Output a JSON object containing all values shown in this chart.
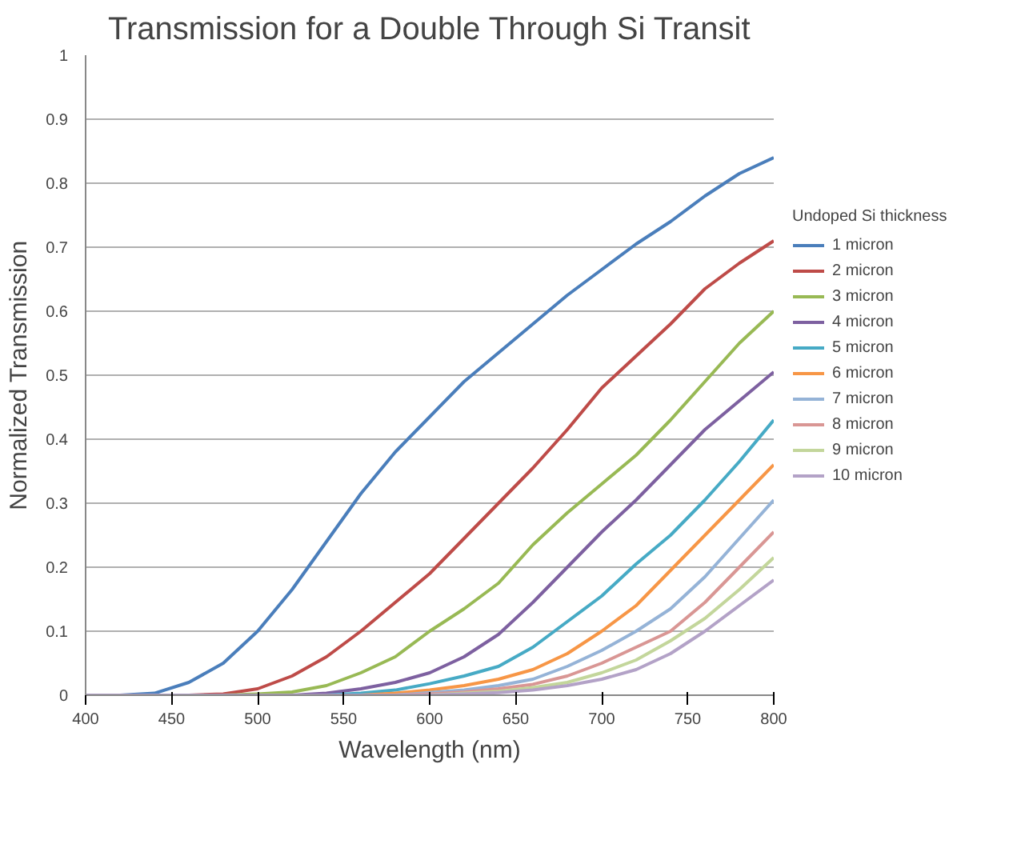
{
  "chart_data": {
    "type": "line",
    "title": "Transmission for a Double Through Si Transit",
    "xlabel": "Wavelength (nm)",
    "ylabel": "Normalized Transmission",
    "legend_title": "Undoped Si thickness",
    "x": [
      400,
      420,
      440,
      460,
      480,
      500,
      520,
      540,
      560,
      580,
      600,
      620,
      640,
      660,
      680,
      700,
      720,
      740,
      760,
      780,
      800
    ],
    "series": [
      {
        "name": "1 micron",
        "color": "#4a7ebb",
        "values": [
          null,
          0,
          0.003,
          0.02,
          0.05,
          0.1,
          0.165,
          0.24,
          0.315,
          0.38,
          0.435,
          0.49,
          0.535,
          0.58,
          0.625,
          0.665,
          0.705,
          0.74,
          0.78,
          0.815,
          0.84
        ]
      },
      {
        "name": "2 micron",
        "color": "#be4b48",
        "values": [
          null,
          null,
          null,
          0,
          0.002,
          0.01,
          0.03,
          0.06,
          0.1,
          0.145,
          0.19,
          0.245,
          0.3,
          0.355,
          0.415,
          0.48,
          0.53,
          0.58,
          0.635,
          0.675,
          0.71
        ]
      },
      {
        "name": "3 micron",
        "color": "#98b954",
        "values": [
          null,
          null,
          null,
          null,
          0,
          0.002,
          0.005,
          0.015,
          0.035,
          0.06,
          0.1,
          0.135,
          0.175,
          0.235,
          0.285,
          0.33,
          0.375,
          0.43,
          0.49,
          0.55,
          0.6
        ]
      },
      {
        "name": "4 micron",
        "color": "#7d60a0",
        "values": [
          null,
          null,
          null,
          null,
          null,
          null,
          0,
          0.003,
          0.01,
          0.02,
          0.035,
          0.06,
          0.095,
          0.145,
          0.2,
          0.255,
          0.305,
          0.36,
          0.415,
          0.46,
          0.505
        ]
      },
      {
        "name": "5 micron",
        "color": "#46aac5",
        "values": [
          null,
          null,
          null,
          null,
          null,
          null,
          null,
          0,
          0.003,
          0.008,
          0.018,
          0.03,
          0.045,
          0.075,
          0.115,
          0.155,
          0.205,
          0.25,
          0.305,
          0.365,
          0.43
        ]
      },
      {
        "name": "6 micron",
        "color": "#f79646",
        "values": [
          null,
          null,
          null,
          null,
          null,
          null,
          null,
          null,
          0,
          0.003,
          0.008,
          0.015,
          0.025,
          0.04,
          0.065,
          0.1,
          0.14,
          0.195,
          0.25,
          0.305,
          0.36
        ]
      },
      {
        "name": "7 micron",
        "color": "#95b3d7",
        "values": [
          null,
          null,
          null,
          null,
          null,
          null,
          null,
          null,
          null,
          0,
          0.004,
          0.008,
          0.015,
          0.025,
          0.045,
          0.07,
          0.1,
          0.135,
          0.185,
          0.245,
          0.305
        ]
      },
      {
        "name": "8 micron",
        "color": "#d99694",
        "values": [
          null,
          null,
          null,
          null,
          null,
          null,
          null,
          null,
          null,
          0,
          0.002,
          0.005,
          0.01,
          0.017,
          0.03,
          0.05,
          0.075,
          0.1,
          0.145,
          0.2,
          0.255
        ]
      },
      {
        "name": "9 micron",
        "color": "#c3d69b",
        "values": [
          null,
          null,
          null,
          null,
          null,
          null,
          null,
          null,
          null,
          null,
          0,
          0.003,
          0.006,
          0.012,
          0.02,
          0.035,
          0.055,
          0.085,
          0.12,
          0.165,
          0.215
        ]
      },
      {
        "name": "10 micron",
        "color": "#b3a2c7",
        "values": [
          0,
          0,
          0,
          0,
          0,
          0,
          0,
          0,
          0,
          0,
          0,
          0.002,
          0.004,
          0.008,
          0.015,
          0.025,
          0.04,
          0.065,
          0.1,
          0.14,
          0.18
        ]
      }
    ],
    "xlim": [
      400,
      800
    ],
    "xticks": [
      400,
      450,
      500,
      550,
      600,
      650,
      700,
      750,
      800
    ],
    "ylim": [
      0,
      1
    ],
    "yticks": [
      0,
      0.1,
      0.2,
      0.3,
      0.4,
      0.5,
      0.6,
      0.7,
      0.8,
      0.9,
      1
    ],
    "grid": "y",
    "legend": "right",
    "marker": "none",
    "line_style": "solid"
  }
}
